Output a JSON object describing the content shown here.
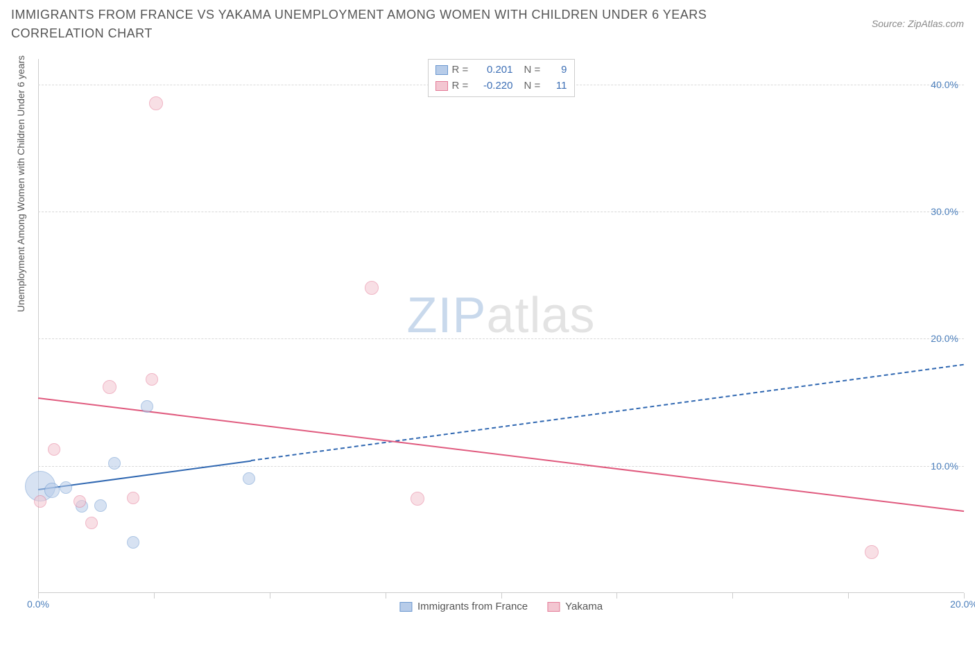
{
  "title": "IMMIGRANTS FROM FRANCE VS YAKAMA UNEMPLOYMENT AMONG WOMEN WITH CHILDREN UNDER 6 YEARS CORRELATION CHART",
  "source": "Source: ZipAtlas.com",
  "y_axis_label": "Unemployment Among Women with Children Under 6 years",
  "watermark_a": "ZIP",
  "watermark_b": "atlas",
  "chart": {
    "type": "scatter",
    "background_color": "#ffffff",
    "grid_color": "#d8d8d8",
    "xlim": [
      0,
      20
    ],
    "ylim": [
      0,
      42
    ],
    "x_ticks": [
      0,
      2.5,
      5,
      7.5,
      10,
      12.5,
      15,
      17.5,
      20
    ],
    "x_tick_labels": {
      "0": "0.0%",
      "20": "20.0%"
    },
    "y_ticks": [
      10,
      20,
      30,
      40
    ],
    "y_tick_labels": {
      "10": "10.0%",
      "20": "20.0%",
      "30": "30.0%",
      "40": "40.0%"
    },
    "series": [
      {
        "name": "Immigrants from France",
        "fill": "#b7cce9",
        "stroke": "#6a97cf",
        "fill_opacity": 0.55,
        "marker_stroke_width": 1.5,
        "R": "0.201",
        "N": "9",
        "trend": {
          "x1": 0,
          "y1": 8.2,
          "x2": 20,
          "y2": 18.0,
          "solid_until_x": 4.6,
          "color": "#2f67b1",
          "width": 2
        },
        "points": [
          {
            "x": 0.05,
            "y": 8.4,
            "r": 22
          },
          {
            "x": 0.3,
            "y": 8.1,
            "r": 11
          },
          {
            "x": 0.6,
            "y": 8.3,
            "r": 9
          },
          {
            "x": 0.95,
            "y": 6.8,
            "r": 9
          },
          {
            "x": 1.35,
            "y": 6.9,
            "r": 9
          },
          {
            "x": 1.65,
            "y": 10.2,
            "r": 9
          },
          {
            "x": 2.05,
            "y": 4.0,
            "r": 9
          },
          {
            "x": 2.35,
            "y": 14.7,
            "r": 9
          },
          {
            "x": 4.55,
            "y": 9.0,
            "r": 9
          }
        ]
      },
      {
        "name": "Yakama",
        "fill": "#f3c6d1",
        "stroke": "#e47a97",
        "fill_opacity": 0.55,
        "marker_stroke_width": 1.5,
        "R": "-0.220",
        "N": "11",
        "trend": {
          "x1": 0,
          "y1": 15.4,
          "x2": 20,
          "y2": 6.5,
          "solid_until_x": 20,
          "color": "#e05a7e",
          "width": 2
        },
        "points": [
          {
            "x": 0.05,
            "y": 7.2,
            "r": 9
          },
          {
            "x": 0.35,
            "y": 11.3,
            "r": 9
          },
          {
            "x": 0.9,
            "y": 7.2,
            "r": 9
          },
          {
            "x": 1.15,
            "y": 5.5,
            "r": 9
          },
          {
            "x": 1.55,
            "y": 16.2,
            "r": 10
          },
          {
            "x": 2.05,
            "y": 7.5,
            "r": 9
          },
          {
            "x": 2.45,
            "y": 16.8,
            "r": 9
          },
          {
            "x": 2.55,
            "y": 38.5,
            "r": 10
          },
          {
            "x": 7.2,
            "y": 24.0,
            "r": 10
          },
          {
            "x": 8.2,
            "y": 7.4,
            "r": 10
          },
          {
            "x": 18.0,
            "y": 3.2,
            "r": 10
          }
        ]
      }
    ],
    "legend_bottom": [
      {
        "label": "Immigrants from France",
        "fill": "#b7cce9",
        "stroke": "#6a97cf"
      },
      {
        "label": "Yakama",
        "fill": "#f3c6d1",
        "stroke": "#e47a97"
      }
    ]
  }
}
